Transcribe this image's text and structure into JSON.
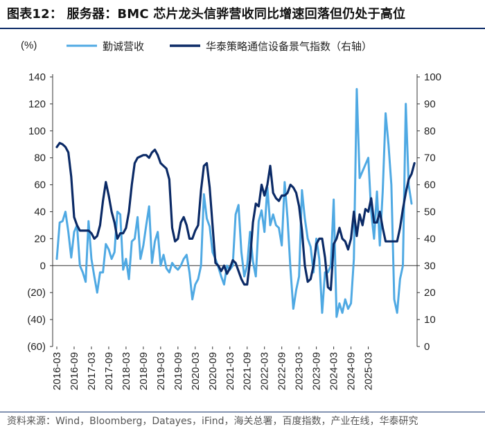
{
  "title": "图表12： 服务器：BMC 芯片龙头信骅营收同比增速回落但仍处于高位",
  "source": "资料来源：Wind，Bloomberg，Datayes，iFind，海关总署，百度指数，产业在线，华泰研究",
  "colors": {
    "series1": "#4fa9e3",
    "series2": "#0b2a66",
    "rule": "#0b2a66"
  },
  "chart_data": {
    "type": "line",
    "left_unit": "(%)",
    "legend_position": "top",
    "left_axis": {
      "min": -60,
      "max": 140,
      "ticks": [
        "140",
        "120",
        "100",
        "80",
        "60",
        "40",
        "20",
        "0",
        "(20)",
        "(40)",
        "(60)"
      ]
    },
    "right_axis": {
      "min": 0,
      "max": 100,
      "ticks": [
        "100",
        "90",
        "80",
        "70",
        "60",
        "50",
        "40",
        "30",
        "20",
        "10",
        "0"
      ]
    },
    "x_ticks": [
      "2016-03",
      "2016-09",
      "2017-03",
      "2017-09",
      "2018-03",
      "2018-09",
      "2019-03",
      "2019-09",
      "2020-03",
      "2020-09",
      "2021-03",
      "2021-09",
      "2022-03",
      "2022-09",
      "2023-03",
      "2023-09",
      "2024-03",
      "2024-09",
      "2025-03"
    ],
    "series": [
      {
        "name": "勤诚营收",
        "axis": "left",
        "values": [
          5,
          32,
          33,
          40,
          25,
          6,
          25,
          30,
          0,
          -5,
          -12,
          33,
          5,
          -8,
          -20,
          -5,
          -5,
          16,
          12,
          5,
          10,
          40,
          38,
          -3,
          5,
          -10,
          18,
          20,
          36,
          5,
          15,
          30,
          44,
          2,
          18,
          25,
          0,
          8,
          -2,
          -5,
          2,
          -1,
          -3,
          0,
          5,
          8,
          -5,
          -25,
          -14,
          -10,
          0,
          53,
          35,
          29,
          10,
          5,
          -1,
          -8,
          -14,
          0,
          -3,
          0,
          38,
          45,
          10,
          -8,
          0,
          25,
          3,
          -8,
          33,
          41,
          25,
          58,
          30,
          38,
          30,
          28,
          15,
          62,
          35,
          -2,
          -32,
          -18,
          -8,
          56,
          35,
          20,
          14,
          -5,
          20,
          5,
          -35,
          -5,
          -5,
          0,
          49,
          -38,
          -28,
          -35,
          -25,
          -32,
          -28,
          5,
          131,
          65,
          70,
          75,
          80,
          40,
          20,
          55,
          15,
          55,
          113,
          90,
          60,
          -25,
          -35,
          -10,
          0,
          120,
          60,
          46
        ]
      },
      {
        "name": "华泰策略通信设备景气指数（右轴）",
        "axis": "right",
        "values": [
          74,
          75.5,
          75,
          74,
          72,
          63,
          48,
          45,
          43,
          43,
          43,
          43,
          42,
          40,
          41,
          45,
          54,
          61,
          56,
          50,
          46,
          40,
          42,
          42,
          44,
          50,
          60,
          68,
          70,
          70.5,
          71,
          71,
          70,
          72,
          73,
          71,
          68,
          67,
          66,
          62,
          44,
          39,
          40,
          46,
          48,
          45,
          40,
          40,
          43,
          45,
          58,
          67,
          68,
          59,
          45,
          31,
          30,
          28,
          30,
          27,
          29,
          32,
          31,
          28,
          25,
          23,
          23,
          32,
          46,
          53,
          52,
          60,
          56,
          60,
          67,
          57,
          55,
          54,
          56,
          56,
          57,
          60,
          59,
          57,
          52,
          43,
          30,
          24,
          25,
          30,
          38,
          40,
          40,
          33,
          22,
          21,
          38,
          40,
          44,
          40,
          39,
          36,
          40,
          50,
          41,
          49,
          45,
          51,
          50,
          55,
          46,
          46,
          50,
          44,
          39,
          39,
          39,
          39,
          39,
          44,
          51,
          57,
          62,
          64,
          68
        ]
      }
    ]
  }
}
